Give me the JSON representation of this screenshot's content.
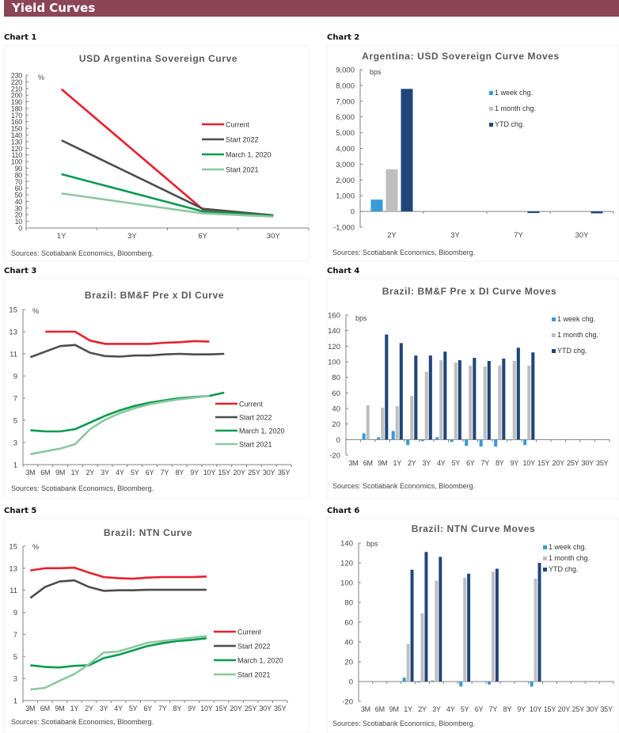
{
  "header": {
    "title": "Yield Curves"
  },
  "source": "Sources: Scotiabank Economics, Bloomberg.",
  "colors": {
    "header": "#8c4557",
    "current": "#e8202e",
    "start2022": "#4d4d4d",
    "march2020": "#0a9a50",
    "start2021": "#8cc8a0",
    "week": "#3a9ad6",
    "month": "#bfbfbf",
    "ytd": "#1f467a"
  },
  "chart_labels": [
    "Chart 1",
    "Chart 2",
    "Chart 3",
    "Chart 4",
    "Chart 5",
    "Chart 6"
  ],
  "chart_data": [
    {
      "type": "line",
      "title": "USD Argentina Sovereign Curve",
      "ylabel": "%",
      "ylim": [
        0,
        230
      ],
      "ytick_step": 10,
      "categories": [
        "1Y",
        "3Y",
        "6Y",
        "30Y"
      ],
      "legend_position": "right",
      "series": [
        {
          "name": "Current",
          "color_key": "current",
          "values": [
            209,
            null,
            28,
            19
          ]
        },
        {
          "name": "Start 2022",
          "color_key": "start2022",
          "values": [
            132,
            null,
            29,
            19
          ]
        },
        {
          "name": "March 1, 2020",
          "color_key": "march2020",
          "values": [
            81,
            null,
            25,
            18
          ]
        },
        {
          "name": "Start 2021",
          "color_key": "start2021",
          "values": [
            52,
            null,
            22,
            17
          ]
        }
      ]
    },
    {
      "type": "bar",
      "title": "Argentina: USD Sovereign Curve Moves",
      "ylabel": "bps",
      "ylim": [
        -1000,
        9000
      ],
      "ytick_step": 1000,
      "categories": [
        "2Y",
        "3Y",
        "7Y",
        "30Y"
      ],
      "legend_position": "top-right",
      "series": [
        {
          "name": "1 week chg.",
          "color_key": "week",
          "values": [
            750,
            null,
            null,
            null
          ]
        },
        {
          "name": "1 month chg.",
          "color_key": "month",
          "values": [
            2680,
            null,
            null,
            null
          ]
        },
        {
          "name": "YTD chg.",
          "color_key": "ytd",
          "values": [
            7780,
            null,
            -100,
            -120
          ]
        }
      ]
    },
    {
      "type": "line",
      "title": "Brazil: BM&F Pre x DI Curve",
      "ylabel": "%",
      "ylim": [
        1,
        15
      ],
      "ytick_step": 2,
      "categories": [
        "3M",
        "6M",
        "9M",
        "1Y",
        "2Y",
        "3Y",
        "4Y",
        "5Y",
        "6Y",
        "7Y",
        "8Y",
        "9Y",
        "10Y",
        "15Y",
        "20Y",
        "25Y",
        "30Y",
        "35Y"
      ],
      "legend_position": "right",
      "series": [
        {
          "name": "Current",
          "color_key": "current",
          "values": [
            null,
            13.0,
            13.0,
            13.0,
            12.2,
            11.9,
            11.9,
            11.9,
            11.9,
            12.0,
            12.05,
            12.15,
            12.1,
            null,
            null,
            null,
            null,
            null
          ]
        },
        {
          "name": "Start 2022",
          "color_key": "start2022",
          "values": [
            10.7,
            11.2,
            11.7,
            11.8,
            11.1,
            10.8,
            10.75,
            10.85,
            10.85,
            10.95,
            11.0,
            10.95,
            10.95,
            11.0,
            null,
            null,
            null,
            null
          ]
        },
        {
          "name": "March 1, 2020",
          "color_key": "march2020",
          "values": [
            4.1,
            4.0,
            4.0,
            4.2,
            4.8,
            5.4,
            5.9,
            6.3,
            6.6,
            6.8,
            7.0,
            7.1,
            7.2,
            7.5,
            null,
            null,
            null,
            null
          ]
        },
        {
          "name": "Start 2021",
          "color_key": "start2021",
          "values": [
            1.95,
            2.2,
            2.45,
            2.85,
            4.2,
            5.05,
            5.65,
            6.1,
            6.45,
            6.7,
            6.9,
            7.05,
            7.2,
            null,
            null,
            null,
            null,
            null
          ]
        }
      ]
    },
    {
      "type": "bar",
      "title": "Brazil: BM&F Pre x DI Curve Moves",
      "ylabel": "bps",
      "ylim": [
        -20,
        160
      ],
      "ytick_step": 20,
      "categories": [
        "3M",
        "6M",
        "9M",
        "1Y",
        "2Y",
        "3Y",
        "4Y",
        "5Y",
        "6Y",
        "7Y",
        "8Y",
        "9Y",
        "10Y",
        "15Y",
        "20Y",
        "25Y",
        "30Y",
        "35Y"
      ],
      "legend_position": "top-right",
      "series": [
        {
          "name": "1 week chg.",
          "color_key": "week",
          "values": [
            null,
            8,
            3,
            11,
            -7,
            -2,
            3,
            -3,
            -8,
            -9,
            -9,
            -1,
            -7,
            null,
            null,
            null,
            null,
            null
          ]
        },
        {
          "name": "1 month chg.",
          "color_key": "month",
          "values": [
            null,
            44,
            41,
            43,
            56,
            87,
            102,
            99,
            95,
            94,
            95,
            101,
            95,
            null,
            null,
            null,
            null,
            null
          ]
        },
        {
          "name": "YTD chg.",
          "color_key": "ytd",
          "values": [
            null,
            null,
            135,
            124,
            108,
            108,
            113,
            102,
            105,
            101,
            104,
            118,
            112,
            null,
            null,
            null,
            null,
            null
          ]
        }
      ]
    },
    {
      "type": "line",
      "title": "Brazil: NTN Curve",
      "ylabel": "%",
      "ylim": [
        1,
        15
      ],
      "ytick_step": 2,
      "categories": [
        "3M",
        "6M",
        "9M",
        "1Y",
        "2Y",
        "3Y",
        "4Y",
        "5Y",
        "6Y",
        "7Y",
        "8Y",
        "9Y",
        "10Y",
        "15Y",
        "20Y",
        "25Y",
        "30Y",
        "35Y"
      ],
      "legend_position": "right",
      "series": [
        {
          "name": "Current",
          "color_key": "current",
          "values": [
            12.8,
            13.0,
            13.0,
            13.05,
            12.6,
            12.2,
            12.1,
            12.05,
            12.15,
            12.2,
            12.2,
            12.2,
            12.25,
            null,
            null,
            null,
            null,
            null
          ]
        },
        {
          "name": "Start 2022",
          "color_key": "start2022",
          "values": [
            10.3,
            11.3,
            11.8,
            11.9,
            11.3,
            10.95,
            11.0,
            11.0,
            11.05,
            11.05,
            11.05,
            11.05,
            11.05,
            null,
            null,
            null,
            null,
            null
          ]
        },
        {
          "name": "March 1, 2020",
          "color_key": "march2020",
          "values": [
            4.2,
            4.05,
            4.0,
            4.15,
            4.2,
            4.85,
            5.15,
            5.55,
            5.95,
            6.2,
            6.4,
            6.5,
            6.65,
            null,
            null,
            null,
            null,
            null
          ]
        },
        {
          "name": "Start 2021",
          "color_key": "start2021",
          "values": [
            2.0,
            2.15,
            2.8,
            3.4,
            4.3,
            5.35,
            5.45,
            5.85,
            6.25,
            6.4,
            6.55,
            6.7,
            6.85,
            null,
            null,
            null,
            null,
            null
          ]
        }
      ]
    },
    {
      "type": "bar",
      "title": "Brazil: NTN Curve Moves",
      "ylabel": "bps",
      "ylim": [
        -20,
        140
      ],
      "ytick_step": 20,
      "categories": [
        "3M",
        "6M",
        "9M",
        "1Y",
        "2Y",
        "3Y",
        "4Y",
        "5Y",
        "6Y",
        "7Y",
        "8Y",
        "9Y",
        "10Y",
        "15Y",
        "20Y",
        "25Y",
        "30Y",
        "35Y"
      ],
      "legend_position": "top-right",
      "series": [
        {
          "name": "1 week chg.",
          "color_key": "week",
          "values": [
            null,
            null,
            null,
            4,
            -1,
            1,
            null,
            -5,
            null,
            -3,
            null,
            null,
            -5,
            null,
            null,
            null,
            null,
            null
          ]
        },
        {
          "name": "1 month chg.",
          "color_key": "month",
          "values": [
            null,
            null,
            null,
            38,
            69,
            102,
            null,
            105,
            null,
            111,
            null,
            null,
            104,
            null,
            null,
            null,
            null,
            null
          ]
        },
        {
          "name": "YTD chg.",
          "color_key": "ytd",
          "values": [
            null,
            null,
            null,
            113,
            131,
            126,
            null,
            109,
            null,
            114,
            null,
            null,
            120,
            null,
            null,
            null,
            null,
            null
          ]
        }
      ]
    }
  ]
}
